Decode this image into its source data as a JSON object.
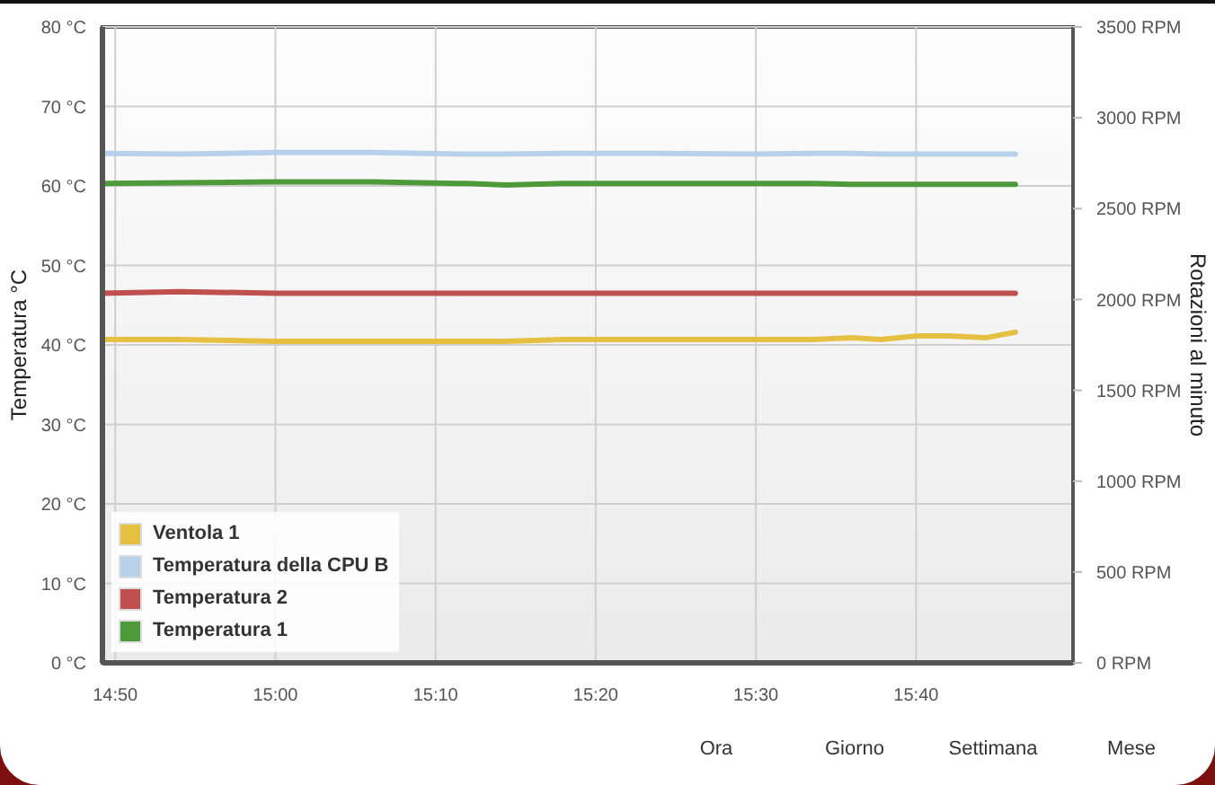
{
  "chart_data": {
    "type": "line",
    "ylabel": "Temperatura °C",
    "y2label": "Rotazioni al minuto",
    "x": [
      14.82,
      14.9,
      15.0,
      15.1,
      15.2,
      15.24,
      15.3,
      15.4,
      15.5,
      15.56,
      15.6,
      15.63,
      15.67,
      15.7,
      15.74,
      15.77
    ],
    "series": [
      {
        "name": "Ventola 1",
        "color": "#e6c043",
        "axis": "y2",
        "values": [
          1780,
          1780,
          1770,
          1770,
          1770,
          1770,
          1780,
          1780,
          1780,
          1780,
          1790,
          1780,
          1800,
          1800,
          1790,
          1820
        ]
      },
      {
        "name": "Temperatura della CPU B",
        "color": "#b7d1ea",
        "values": [
          64.1,
          64.0,
          64.2,
          64.2,
          64.0,
          64.0,
          64.1,
          64.1,
          64.0,
          64.1,
          64.1,
          64.0,
          64.0,
          64.0,
          64.0,
          64.0
        ]
      },
      {
        "name": "Temperatura 2",
        "color": "#c0504d",
        "values": [
          46.5,
          46.7,
          46.5,
          46.5,
          46.5,
          46.5,
          46.5,
          46.5,
          46.5,
          46.5,
          46.5,
          46.5,
          46.5,
          46.5,
          46.5,
          46.5
        ]
      },
      {
        "name": "Temperatura 1",
        "color": "#4e9a3a",
        "values": [
          60.3,
          60.4,
          60.5,
          60.5,
          60.3,
          60.1,
          60.3,
          60.3,
          60.3,
          60.3,
          60.2,
          60.2,
          60.2,
          60.2,
          60.2,
          60.2
        ]
      }
    ],
    "xlim": [
      14.82,
      15.83
    ],
    "xticks": [
      {
        "value": 14.8333,
        "label": "14:50"
      },
      {
        "value": 15.0,
        "label": "15:00"
      },
      {
        "value": 15.1667,
        "label": "15:10"
      },
      {
        "value": 15.3333,
        "label": "15:20"
      },
      {
        "value": 15.5,
        "label": "15:30"
      },
      {
        "value": 15.6667,
        "label": "15:40"
      }
    ],
    "ylim": [
      0,
      80
    ],
    "yticks": [
      {
        "value": 0,
        "label": "0 °C"
      },
      {
        "value": 10,
        "label": "10 °C"
      },
      {
        "value": 20,
        "label": "20 °C"
      },
      {
        "value": 30,
        "label": "30 °C"
      },
      {
        "value": 40,
        "label": "40 °C"
      },
      {
        "value": 50,
        "label": "50 °C"
      },
      {
        "value": 60,
        "label": "60 °C"
      },
      {
        "value": 70,
        "label": "70 °C"
      },
      {
        "value": 80,
        "label": "80 °C"
      }
    ],
    "y2lim": [
      0,
      3500
    ],
    "y2ticks": [
      {
        "value": 0,
        "label": "0 RPM"
      },
      {
        "value": 500,
        "label": "500 RPM"
      },
      {
        "value": 1000,
        "label": "1000 RPM"
      },
      {
        "value": 1500,
        "label": "1500 RPM"
      },
      {
        "value": 2000,
        "label": "2000 RPM"
      },
      {
        "value": 2500,
        "label": "2500 RPM"
      },
      {
        "value": 3000,
        "label": "3000 RPM"
      },
      {
        "value": 3500,
        "label": "3500 RPM"
      }
    ],
    "grid": true,
    "legend": "bottom left",
    "annotations": [
      "Ora",
      "Giorno",
      "Settimana",
      "Mese"
    ]
  }
}
